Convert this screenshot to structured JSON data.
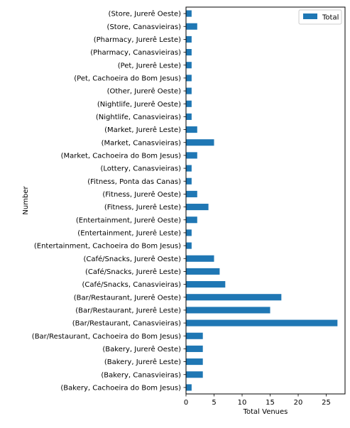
{
  "chart_data": {
    "type": "bar",
    "orientation": "horizontal",
    "categories": [
      "(Bakery, Cachoeira do Bom Jesus)",
      "(Bakery, Canasvieiras)",
      "(Bakery, Jurerê Leste)",
      "(Bakery, Jurerê Oeste)",
      "(Bar/Restaurant, Cachoeira do Bom Jesus)",
      "(Bar/Restaurant, Canasvieiras)",
      "(Bar/Restaurant, Jurerê Leste)",
      "(Bar/Restaurant, Jurerê Oeste)",
      "(Café/Snacks, Canasvieiras)",
      "(Café/Snacks, Jurerê Leste)",
      "(Café/Snacks, Jurerê Oeste)",
      "(Entertainment, Cachoeira do Bom Jesus)",
      "(Entertainment, Jurerê Leste)",
      "(Entertainment, Jurerê Oeste)",
      "(Fitness, Jurerê Leste)",
      "(Fitness, Jurerê Oeste)",
      "(Fitness, Ponta das Canas)",
      "(Lottery, Canasvieiras)",
      "(Market, Cachoeira do Bom Jesus)",
      "(Market, Canasvieiras)",
      "(Market, Jurerê Leste)",
      "(Nightlife, Canasvieiras)",
      "(Nightlife, Jurerê Oeste)",
      "(Other, Jurerê Oeste)",
      "(Pet, Cachoeira do Bom Jesus)",
      "(Pet, Jurerê Leste)",
      "(Pharmacy, Canasvieiras)",
      "(Pharmacy, Jurerê Leste)",
      "(Store, Canasvieiras)",
      "(Store, Jurerê Oeste)"
    ],
    "series": [
      {
        "name": "Total",
        "color": "#1f77b4",
        "values": [
          1,
          3,
          3,
          3,
          3,
          27,
          15,
          17,
          7,
          6,
          5,
          1,
          1,
          2,
          4,
          2,
          1,
          1,
          2,
          5,
          2,
          1,
          1,
          1,
          1,
          1,
          1,
          1,
          2,
          1
        ]
      }
    ],
    "xlabel": "Total Venues",
    "ylabel": "Number",
    "xlim": [
      0,
      28.35
    ],
    "xticks": [
      0,
      5,
      10,
      15,
      20,
      25
    ],
    "grid": false,
    "legend_position": "top-right"
  }
}
